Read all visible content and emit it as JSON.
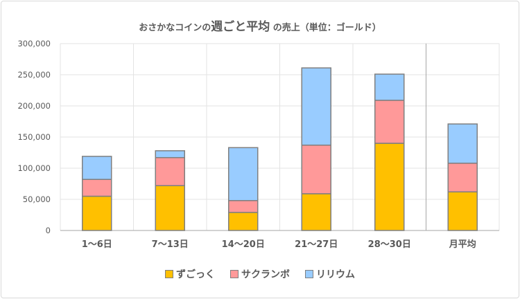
{
  "chart_data": {
    "type": "bar",
    "stacked": true,
    "title": {
      "prefix": "おさかなコインの",
      "emphasis": "週ごと平均",
      "suffix": "の売上（単位：ゴールド）"
    },
    "categories": [
      "1～6日",
      "7～13日",
      "14～20日",
      "21～27日",
      "28～30日",
      "月平均"
    ],
    "series": [
      {
        "name": "ずごっく",
        "color": "#FFC000",
        "values": [
          55000,
          72000,
          29000,
          59000,
          140000,
          62000
        ]
      },
      {
        "name": "サクランボ",
        "color": "#FF9999",
        "values": [
          27000,
          45000,
          19000,
          78000,
          69000,
          46000
        ]
      },
      {
        "name": "リリウム",
        "color": "#99CCFF",
        "values": [
          37000,
          11000,
          85000,
          124000,
          42000,
          63000
        ]
      }
    ],
    "ylim": [
      0,
      300000
    ],
    "yticks": [
      "0",
      "50,000",
      "100,000",
      "150,000",
      "200,000",
      "250,000",
      "300,000"
    ],
    "grid": true,
    "legend": "bottom",
    "separator_before": "月平均"
  }
}
